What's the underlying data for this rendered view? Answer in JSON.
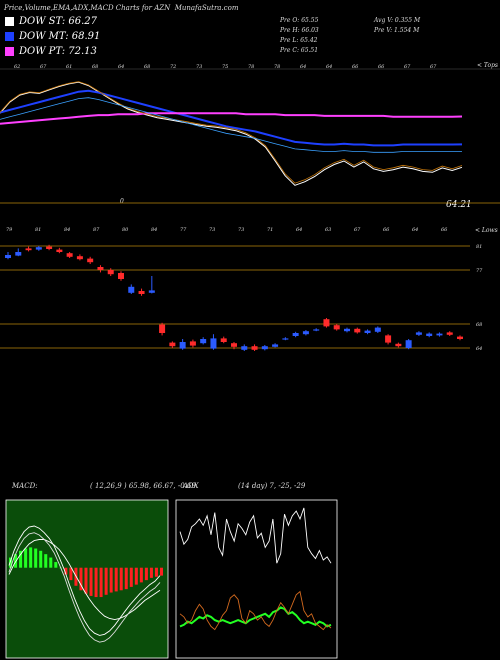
{
  "header": {
    "title": "Price,Volume,EMA,ADX,MACD Charts for AZN",
    "site": "MunafaSutra.com"
  },
  "legend": [
    {
      "label": "DOW ST: 66.27",
      "color": "#ffffff"
    },
    {
      "label": "DOW MT: 68.91",
      "color": "#1e40ff"
    },
    {
      "label": "DOW PT: 72.13",
      "color": "#ff40ff"
    }
  ],
  "ohlc": {
    "prev_open": "Pre O: 65.55",
    "prev_high": "Pre H: 66.03",
    "prev_low": "Pre L: 65.42",
    "prev_close": "Pre C: 65.51",
    "avg_vol": "Avg V: 0.355 M",
    "prev_vol": "Pre V: 1.554 M"
  },
  "ema_panel": {
    "corner_label": "< Tops",
    "last_value": "64.21",
    "small_zero": "0",
    "top_labels": [
      "62",
      "67",
      "61",
      "68",
      "64",
      "68",
      "72",
      "73",
      "75",
      "78",
      "78",
      "64",
      "64",
      "66",
      "66",
      "67",
      "67"
    ],
    "bottom_labels": [
      "79",
      "81",
      "84",
      "87",
      "80",
      "84",
      "77",
      "73",
      "73",
      "71",
      "64",
      "63",
      "67",
      "66",
      "64",
      "66"
    ]
  },
  "candle_panel": {
    "corner_label": "< Lows",
    "price_levels": [
      "81",
      "77",
      "68",
      "64"
    ]
  },
  "chart_data": [
    {
      "type": "line",
      "title": "",
      "series": [
        {
          "name": "DOW ST",
          "color": "#ffffff",
          "values": [
            72.5,
            73.8,
            74.6,
            74.9,
            74.8,
            75.2,
            75.6,
            75.9,
            76.1,
            75.7,
            75.0,
            74.3,
            73.6,
            73.0,
            72.6,
            72.3,
            72.0,
            71.8,
            71.6,
            71.4,
            71.2,
            71.0,
            70.9,
            70.7,
            70.5,
            70.1,
            69.5,
            68.6,
            67.0,
            65.3,
            64.2,
            64.6,
            65.2,
            66.0,
            66.6,
            67.0,
            66.3,
            66.9,
            66.1,
            65.8,
            66.0,
            66.3,
            66.1,
            65.8,
            65.7,
            66.2,
            65.9,
            66.27
          ]
        },
        {
          "name": "DOW MT",
          "color": "#1e40ff",
          "values": [
            72.6,
            72.9,
            73.2,
            73.5,
            73.8,
            74.1,
            74.4,
            74.7,
            75.0,
            75.1,
            74.9,
            74.6,
            74.3,
            74.0,
            73.7,
            73.4,
            73.1,
            72.8,
            72.5,
            72.2,
            71.9,
            71.6,
            71.3,
            71.0,
            70.8,
            70.6,
            70.4,
            70.1,
            69.8,
            69.5,
            69.2,
            69.1,
            69.0,
            68.9,
            68.9,
            69.0,
            68.9,
            68.9,
            68.8,
            68.8,
            68.8,
            68.9,
            68.9,
            68.9,
            68.9,
            68.9,
            68.9,
            68.91
          ]
        },
        {
          "name": "DOW PT",
          "color": "#ff40ff",
          "values": [
            71.3,
            71.4,
            71.5,
            71.6,
            71.7,
            71.8,
            71.9,
            72.0,
            72.1,
            72.2,
            72.3,
            72.3,
            72.4,
            72.4,
            72.4,
            72.5,
            72.5,
            72.5,
            72.5,
            72.5,
            72.5,
            72.5,
            72.5,
            72.5,
            72.5,
            72.4,
            72.4,
            72.4,
            72.4,
            72.3,
            72.3,
            72.3,
            72.3,
            72.2,
            72.2,
            72.2,
            72.2,
            72.2,
            72.2,
            72.2,
            72.1,
            72.1,
            72.1,
            72.1,
            72.1,
            72.1,
            72.1,
            72.13
          ]
        }
      ]
    },
    {
      "type": "candlestick",
      "title": "",
      "candles": [
        {
          "o": 79.0,
          "c": 79.5,
          "h": 80.0,
          "l": 78.8
        },
        {
          "o": 79.4,
          "c": 80.0,
          "h": 80.6,
          "l": 79.3
        },
        {
          "o": 80.6,
          "c": 80.3,
          "h": 80.9,
          "l": 80.1
        },
        {
          "o": 80.4,
          "c": 80.8,
          "h": 81.0,
          "l": 80.2
        },
        {
          "o": 80.9,
          "c": 80.5,
          "h": 81.2,
          "l": 80.3
        },
        {
          "o": 80.4,
          "c": 80.0,
          "h": 80.7,
          "l": 79.8
        },
        {
          "o": 79.8,
          "c": 79.2,
          "h": 80.0,
          "l": 79.0
        },
        {
          "o": 79.3,
          "c": 78.8,
          "h": 79.6,
          "l": 78.6
        },
        {
          "o": 78.9,
          "c": 78.3,
          "h": 79.2,
          "l": 78.0
        },
        {
          "o": 77.5,
          "c": 77.0,
          "h": 77.8,
          "l": 76.6
        },
        {
          "o": 77.0,
          "c": 76.3,
          "h": 77.3,
          "l": 76.0
        },
        {
          "o": 76.5,
          "c": 75.5,
          "h": 76.8,
          "l": 75.2
        },
        {
          "o": 73.2,
          "c": 74.2,
          "h": 74.6,
          "l": 73.0
        },
        {
          "o": 73.5,
          "c": 73.0,
          "h": 73.9,
          "l": 72.7
        },
        {
          "o": 73.2,
          "c": 73.6,
          "h": 76.0,
          "l": 73.1
        },
        {
          "o": 67.9,
          "c": 66.5,
          "h": 68.2,
          "l": 66.1
        },
        {
          "o": 64.9,
          "c": 64.3,
          "h": 65.1,
          "l": 64.0
        },
        {
          "o": 63.9,
          "c": 65.0,
          "h": 65.5,
          "l": 63.7
        },
        {
          "o": 65.1,
          "c": 64.4,
          "h": 65.4,
          "l": 64.1
        },
        {
          "o": 64.8,
          "c": 65.5,
          "h": 65.8,
          "l": 64.6
        },
        {
          "o": 63.9,
          "c": 65.6,
          "h": 66.3,
          "l": 63.7
        },
        {
          "o": 65.6,
          "c": 65.0,
          "h": 65.9,
          "l": 64.8
        },
        {
          "o": 64.8,
          "c": 64.2,
          "h": 65.0,
          "l": 63.8
        },
        {
          "o": 63.7,
          "c": 64.3,
          "h": 64.6,
          "l": 63.5
        },
        {
          "o": 64.3,
          "c": 63.7,
          "h": 64.6,
          "l": 63.5
        },
        {
          "o": 63.8,
          "c": 64.3,
          "h": 64.5,
          "l": 63.6
        },
        {
          "o": 64.2,
          "c": 64.6,
          "h": 64.8,
          "l": 64.1
        },
        {
          "o": 65.5,
          "c": 65.6,
          "h": 65.8,
          "l": 65.3
        },
        {
          "o": 66.0,
          "c": 66.5,
          "h": 66.7,
          "l": 65.8
        },
        {
          "o": 66.3,
          "c": 66.8,
          "h": 67.0,
          "l": 66.1
        },
        {
          "o": 67.0,
          "c": 67.1,
          "h": 67.3,
          "l": 66.8
        },
        {
          "o": 68.8,
          "c": 67.6,
          "h": 69.0,
          "l": 67.4
        },
        {
          "o": 67.8,
          "c": 67.1,
          "h": 68.0,
          "l": 66.9
        },
        {
          "o": 66.8,
          "c": 67.2,
          "h": 67.4,
          "l": 66.6
        },
        {
          "o": 67.2,
          "c": 66.6,
          "h": 67.4,
          "l": 66.4
        },
        {
          "o": 66.5,
          "c": 66.9,
          "h": 67.1,
          "l": 66.3
        },
        {
          "o": 66.7,
          "c": 67.4,
          "h": 67.6,
          "l": 66.5
        },
        {
          "o": 66.1,
          "c": 64.9,
          "h": 66.3,
          "l": 64.6
        },
        {
          "o": 64.7,
          "c": 64.3,
          "h": 64.9,
          "l": 64.1
        },
        {
          "o": 64.0,
          "c": 65.3,
          "h": 65.5,
          "l": 63.8
        },
        {
          "o": 66.2,
          "c": 66.6,
          "h": 66.8,
          "l": 66.0
        },
        {
          "o": 66.0,
          "c": 66.4,
          "h": 66.6,
          "l": 65.8
        },
        {
          "o": 66.1,
          "c": 66.4,
          "h": 66.6,
          "l": 65.9
        },
        {
          "o": 66.6,
          "c": 66.2,
          "h": 66.8,
          "l": 66.0
        },
        {
          "o": 65.9,
          "c": 65.5,
          "h": 66.1,
          "l": 65.3
        }
      ]
    },
    {
      "type": "macd",
      "title": "MACD:",
      "params": "( 12,26,9 ) 65.98,  66.67,  -0.69",
      "histogram": [
        0.9,
        1.2,
        1.5,
        1.7,
        1.8,
        1.7,
        1.5,
        1.2,
        0.9,
        0.5,
        0.0,
        -0.6,
        -1.1,
        -1.6,
        -2.0,
        -2.3,
        -2.5,
        -2.6,
        -2.6,
        -2.4,
        -2.2,
        -2.1,
        -2.0,
        -1.9,
        -1.7,
        -1.5,
        -1.3,
        -1.1,
        -0.9,
        -0.8,
        -0.7
      ],
      "macd": [
        0.2,
        1.5,
        2.5,
        3.2,
        3.6,
        3.7,
        3.5,
        3.1,
        2.6,
        1.9,
        0.9,
        -0.2,
        -1.5,
        -2.7,
        -3.8,
        -4.7,
        -5.4,
        -5.8,
        -6.0,
        -5.9,
        -5.6,
        -5.1,
        -4.5,
        -3.9,
        -3.3,
        -2.8,
        -2.3,
        -1.9,
        -1.5,
        -1.2,
        -0.7
      ],
      "signal": [
        -0.6,
        0.3,
        1.0,
        1.6,
        2.1,
        2.4,
        2.5,
        2.5,
        2.3,
        2.0,
        1.6,
        1.0,
        0.3,
        -0.5,
        -1.3,
        -2.1,
        -2.8,
        -3.4,
        -3.9,
        -4.3,
        -4.5,
        -4.6,
        -4.5,
        -4.3,
        -4.0,
        -3.7,
        -3.3,
        -2.9,
        -2.6,
        -2.3,
        -2.0
      ]
    },
    {
      "type": "adx",
      "title": "ADX",
      "params": "(14 day) 7,  -25,  -29",
      "adx": [
        80,
        72,
        75,
        83,
        85,
        88,
        84,
        90,
        78,
        92,
        70,
        65,
        88,
        80,
        74,
        85,
        82,
        78,
        86,
        90,
        76,
        79,
        70,
        74,
        88,
        60,
        66,
        91,
        84,
        90,
        93,
        88,
        95,
        70,
        66,
        63,
        68,
        62,
        64,
        60
      ],
      "plus_di": [
        28,
        26,
        22,
        24,
        30,
        34,
        31,
        24,
        20,
        18,
        22,
        27,
        30,
        38,
        40,
        37,
        25,
        22,
        30,
        28,
        24,
        26,
        22,
        20,
        24,
        30,
        35,
        32,
        28,
        34,
        40,
        42,
        30,
        26,
        28,
        22,
        20,
        18,
        21,
        19
      ],
      "minus_di": [
        20,
        21,
        23,
        22,
        24,
        26,
        25,
        27,
        26,
        24,
        23,
        24,
        23,
        22,
        23,
        24,
        23,
        22,
        24,
        25,
        26,
        27,
        28,
        26,
        29,
        30,
        32,
        31,
        28,
        29,
        27,
        24,
        22,
        23,
        22,
        21,
        23,
        22,
        20,
        21
      ]
    }
  ]
}
